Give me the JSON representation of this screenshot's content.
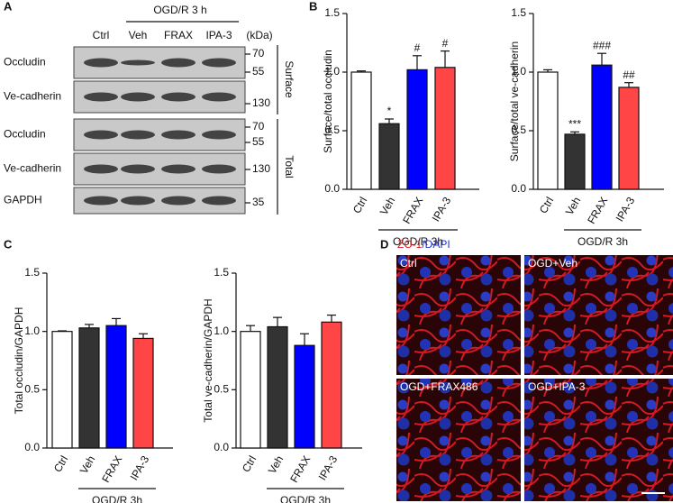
{
  "panel_letters": [
    "A",
    "B",
    "C",
    "D"
  ],
  "blot": {
    "group_label": "OGD/R 3 h",
    "lanes": [
      "Ctrl",
      "Veh",
      "FRAX",
      "IPA-3"
    ],
    "unit": "(kDa)",
    "rows": [
      {
        "label": "Occludin",
        "markers": [
          70,
          55
        ]
      },
      {
        "label": "Ve-cadherin",
        "markers": [
          130
        ]
      },
      {
        "label": "Occludin",
        "markers": [
          70,
          55
        ]
      },
      {
        "label": "Ve-cadherin",
        "markers": [
          130
        ]
      },
      {
        "label": "GAPDH",
        "markers": [
          35
        ]
      }
    ],
    "sections": [
      "Surface",
      "Total"
    ]
  },
  "chart_data": [
    {
      "type": "bar",
      "ylabel": "Surface/total occludin",
      "categories": [
        "Ctrl",
        "Veh",
        "FRAX",
        "IPA-3"
      ],
      "values": [
        1.0,
        0.56,
        1.02,
        1.04
      ],
      "errors": [
        0.01,
        0.04,
        0.12,
        0.14
      ],
      "significance": [
        null,
        "*",
        "#",
        "#"
      ],
      "colors": [
        "#ffffff",
        "#333333",
        "#0000ff",
        "#ff4545"
      ],
      "group_label": "OGD/R 3h",
      "ylim": [
        0,
        1.5
      ],
      "yticks": [
        {
          "value": 0,
          "label": "0.0"
        },
        {
          "value": 0.5,
          "label": "0.5"
        },
        {
          "value": 1,
          "label": "1.0"
        },
        {
          "value": 1.5,
          "label": "1.5"
        }
      ]
    },
    {
      "type": "bar",
      "ylabel": "Surface/total ve-cadherin",
      "categories": [
        "Ctrl",
        "Veh",
        "FRAX",
        "IPA-3"
      ],
      "values": [
        1.0,
        0.47,
        1.06,
        0.87
      ],
      "errors": [
        0.02,
        0.02,
        0.1,
        0.04
      ],
      "significance": [
        null,
        "***",
        "###",
        "##"
      ],
      "colors": [
        "#ffffff",
        "#333333",
        "#0000ff",
        "#ff4545"
      ],
      "group_label": "OGD/R 3h",
      "ylim": [
        0,
        1.5
      ],
      "yticks": [
        {
          "value": 0,
          "label": "0.0"
        },
        {
          "value": 0.5,
          "label": "0.5"
        },
        {
          "value": 1,
          "label": "1.0"
        },
        {
          "value": 1.5,
          "label": "1.5"
        }
      ]
    },
    {
      "type": "bar",
      "ylabel": "Total occludin/GAPDH",
      "categories": [
        "Ctrl",
        "Veh",
        "FRAX",
        "IPA-3"
      ],
      "values": [
        1.0,
        1.03,
        1.05,
        0.94
      ],
      "errors": [
        0.005,
        0.03,
        0.06,
        0.04
      ],
      "colors": [
        "#ffffff",
        "#333333",
        "#0000ff",
        "#ff4545"
      ],
      "group_label": "OGD/R 3h",
      "ylim": [
        0,
        1.5
      ],
      "yticks": [
        {
          "value": 0,
          "label": "0.0"
        },
        {
          "value": 0.5,
          "label": "0.5"
        },
        {
          "value": 1,
          "label": "1.0"
        },
        {
          "value": 1.5,
          "label": "1.5"
        }
      ]
    },
    {
      "type": "bar",
      "ylabel": "Total ve-cadherin/GAPDH",
      "categories": [
        "Ctrl",
        "Veh",
        "FRAX",
        "IPA-3"
      ],
      "values": [
        1.0,
        1.04,
        0.88,
        1.08
      ],
      "errors": [
        0.05,
        0.08,
        0.1,
        0.06
      ],
      "colors": [
        "#ffffff",
        "#333333",
        "#0000ff",
        "#ff4545"
      ],
      "group_label": "OGD/R 3h",
      "ylim": [
        0,
        1.5
      ],
      "yticks": [
        {
          "value": 0,
          "label": "0.0"
        },
        {
          "value": 0.5,
          "label": "0.5"
        },
        {
          "value": 1,
          "label": "1.0"
        },
        {
          "value": 1.5,
          "label": "1.5"
        }
      ]
    }
  ],
  "micrograph": {
    "stain": [
      "ZO-1",
      "/DAPI"
    ],
    "panels": [
      "Ctrl",
      "OGD+Veh",
      "OGD+FRAX486",
      "OGD+IPA-3"
    ]
  }
}
